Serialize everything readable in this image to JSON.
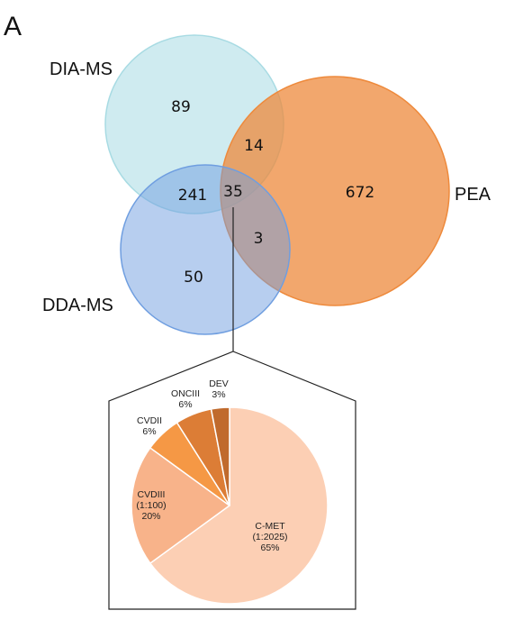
{
  "panel_label": "A",
  "venn": {
    "sets": [
      {
        "id": "dia",
        "name": "DIA-MS",
        "color": "#a8dbe3"
      },
      {
        "id": "pea",
        "name": "PEA",
        "color": "#ee8a3c"
      },
      {
        "id": "dda",
        "name": "DDA-MS",
        "color": "#6f9ee0"
      }
    ],
    "regions": {
      "dia_only": "89",
      "dia_pea": "14",
      "dia_dda": "241",
      "all_three": "35",
      "pea_only": "672",
      "dda_pea": "3",
      "dda_only": "50"
    }
  },
  "chart_data": {
    "type": "pie",
    "slices": [
      {
        "label_lines": [
          "C-MET",
          "(1:2025)",
          "65%"
        ],
        "value": 65,
        "color": "#fccfb4"
      },
      {
        "label_lines": [
          "CVDIII",
          "(1:100)",
          "20%"
        ],
        "value": 20,
        "color": "#f8b38a"
      },
      {
        "label_lines": [
          "CVDII",
          "6%"
        ],
        "value": 6,
        "color": "#f59845"
      },
      {
        "label_lines": [
          "ONCIII",
          "6%"
        ],
        "value": 6,
        "color": "#dc7d36"
      },
      {
        "label_lines": [
          "DEV",
          "3%"
        ],
        "value": 3,
        "color": "#c06a2d"
      }
    ]
  }
}
